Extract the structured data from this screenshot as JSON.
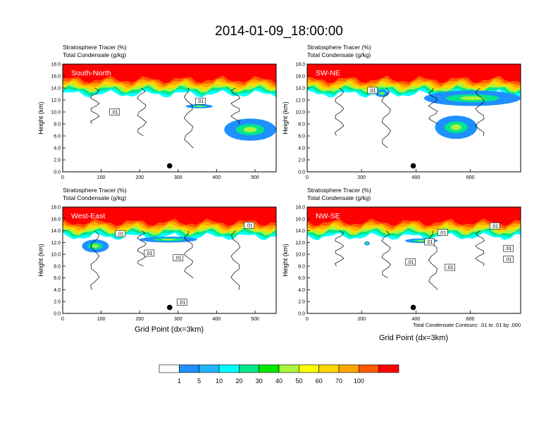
{
  "figure": {
    "title": "2014-01-09_18:00:00",
    "left_title_line1": "Stratosphere Tracer   (%)",
    "left_title_line2": "Total Condensate   (g/kg)",
    "ylabel": "Height (km)",
    "xlabel": "Grid Point (dx=3km)",
    "contour_note": "Total Condensate Contours: .01 to .01 by .000",
    "contour_label": ".01"
  },
  "colorbar": {
    "colors": [
      "#ffffff",
      "#1e90ff",
      "#1fb5ff",
      "#00ffff",
      "#00e68a",
      "#00e600",
      "#aaf53b",
      "#ffff00",
      "#ffd700",
      "#ffa500",
      "#ff5a00",
      "#ff0000"
    ],
    "labels": [
      "1",
      "5",
      "10",
      "20",
      "30",
      "40",
      "50",
      "60",
      "70",
      "100"
    ]
  },
  "chart_data": [
    {
      "type": "heatmap",
      "name": "South-North",
      "xlim": [
        0,
        555
      ],
      "ylim": [
        0,
        18
      ],
      "xticks": [
        0,
        100,
        200,
        300,
        400,
        500
      ],
      "yticks": [
        "0.0",
        "2.0",
        "4.0",
        "6.0",
        "8.0",
        "10.0",
        "12.0",
        "14.0",
        "16.0",
        "18.0"
      ],
      "contour_labels": [
        [
          135,
          10.0
        ],
        [
          358,
          11.8
        ]
      ],
      "marker": [
        278,
        1.0
      ]
    },
    {
      "type": "heatmap",
      "name": "SW-NE",
      "xlim": [
        0,
        785
      ],
      "ylim": [
        0,
        18
      ],
      "xticks": [
        0,
        200,
        400,
        600
      ],
      "yticks": [
        "0.0",
        "2.0",
        "4.0",
        "6.0",
        "8.0",
        "10.0",
        "12.0",
        "14.0",
        "16.0",
        "18.0"
      ],
      "contour_labels": [
        [
          240,
          13.6
        ]
      ],
      "marker": [
        390,
        1.0
      ]
    },
    {
      "type": "heatmap",
      "name": "West-East",
      "xlim": [
        0,
        555
      ],
      "ylim": [
        0,
        18
      ],
      "xticks": [
        0,
        100,
        200,
        300,
        400,
        500
      ],
      "yticks": [
        "0.0",
        "2.0",
        "4.0",
        "6.0",
        "8.0",
        "10.0",
        "12.0",
        "14.0",
        "16.0",
        "18.0"
      ],
      "contour_labels": [
        [
          150,
          13.5
        ],
        [
          485,
          14.9
        ],
        [
          225,
          10.2
        ],
        [
          300,
          9.4
        ],
        [
          310,
          1.9
        ]
      ],
      "marker": [
        278,
        1.0
      ]
    },
    {
      "type": "heatmap",
      "name": "NW-SE",
      "xlim": [
        0,
        785
      ],
      "ylim": [
        0,
        18
      ],
      "xticks": [
        0,
        200,
        400,
        600
      ],
      "yticks": [
        "0.0",
        "2.0",
        "4.0",
        "6.0",
        "8.0",
        "10.0",
        "12.0",
        "14.0",
        "16.0",
        "18.0"
      ],
      "contour_labels": [
        [
          498,
          13.7
        ],
        [
          450,
          12.1
        ],
        [
          380,
          8.7
        ],
        [
          525,
          7.8
        ],
        [
          690,
          14.8
        ],
        [
          740,
          11.0
        ],
        [
          740,
          9.2
        ]
      ],
      "marker": [
        390,
        1.0
      ]
    }
  ]
}
